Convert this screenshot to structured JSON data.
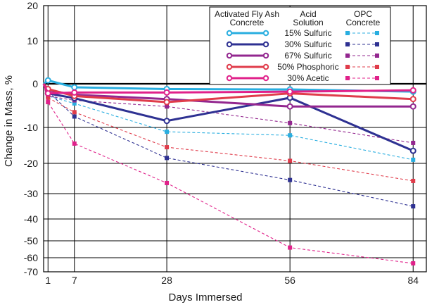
{
  "chart_data": {
    "type": "line",
    "x_values": [
      0,
      1,
      7,
      28,
      56,
      84
    ],
    "x_tick_labels": [
      "1",
      "7",
      "28",
      "56",
      "84"
    ],
    "xlabel": "Days Immersed",
    "ylabel": "Change in Mass, %",
    "y_tick_labels": [
      "20",
      "10",
      "0",
      "-10",
      "-20",
      "-30",
      "-40",
      "-50",
      "-60",
      "-70"
    ],
    "legend": {
      "header_left": [
        "Activated Fly Ash",
        "Concrete"
      ],
      "header_mid": [
        "Acid",
        "Solution"
      ],
      "header_right": [
        "OPC",
        "Concrete"
      ],
      "placement": "top-right"
    },
    "grid": true,
    "series": [
      {
        "name": "15% Sulfuric",
        "color": "#29aee0",
        "fly_ash": [
          0,
          0.8,
          -0.8,
          -1.2,
          -1.3,
          -1.8
        ],
        "opc": [
          0,
          -2.8,
          -4.5,
          -11.2,
          -12.2,
          -19
        ]
      },
      {
        "name": "30% Sulfuric",
        "color": "#2e3192",
        "fly_ash": [
          0,
          -2.2,
          -3.3,
          -8.5,
          -3.2,
          -16.5
        ],
        "opc": [
          0,
          -1.8,
          -7.5,
          -18.5,
          -25.5,
          -35
        ]
      },
      {
        "name": "67% Sulfuric",
        "color": "#93278f",
        "fly_ash": [
          0,
          -1.5,
          -2.5,
          -3.5,
          -5.2,
          -5.2
        ],
        "opc": [
          0,
          -2.8,
          -3.8,
          -5.2,
          -9.0,
          -14.3
        ]
      },
      {
        "name": "50% Phosphoric",
        "color": "#e03c4b",
        "fly_ash": [
          0,
          -1.2,
          -2.8,
          -4.2,
          -2.2,
          -3.5
        ],
        "opc": [
          0,
          -3.2,
          -6.5,
          -15.5,
          -19.3,
          -25.8
        ]
      },
      {
        "name": "30% Acetic",
        "color": "#e0218a",
        "fly_ash": [
          0,
          -2.2,
          -2.0,
          -2.0,
          -1.8,
          -1.5
        ],
        "opc": [
          0,
          -4.2,
          -14.5,
          -26.5,
          -54,
          -64
        ]
      }
    ]
  }
}
